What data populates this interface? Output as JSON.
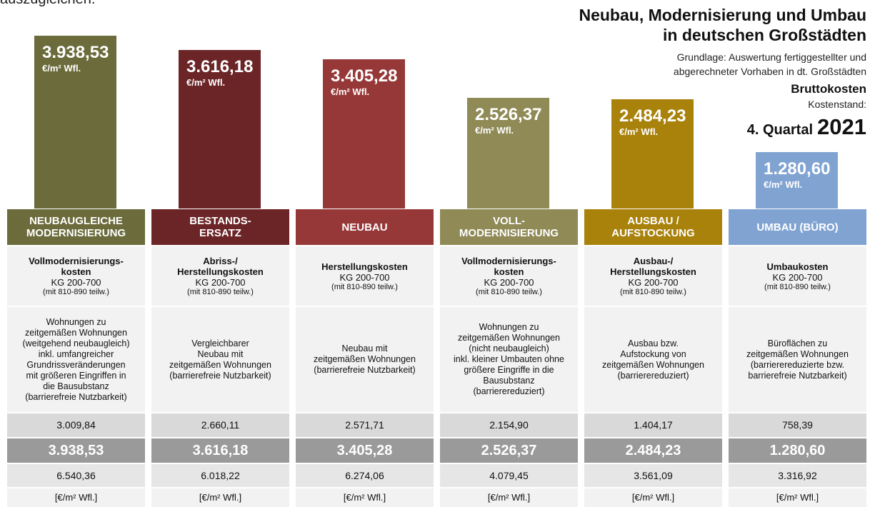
{
  "header_fragment": "auszugleichen.",
  "chart_data": {
    "type": "bar",
    "title": [
      "Neubau, Modernisierung und Umbau",
      "in deutschen Großstädten"
    ],
    "subtitle": [
      "Grundlage: Auswertung fertiggestellter und",
      "abgerechneter Vorhaben in dt. Großstädten"
    ],
    "cost_label": "Bruttokosten",
    "date_label": "Kostenstand:",
    "quarter": "4. Quartal",
    "year": "2021",
    "categories": [
      "NEUBAUGLEICHE MODERNISIERUNG",
      "BESTANDS-ERSATZ",
      "NEUBAU",
      "VOLL-MODERNISIERUNG",
      "AUSBAU / AUFSTOCKUNG",
      "UMBAU (BÜRO)"
    ],
    "category_lines": [
      [
        "NEUBAUGLEICHE",
        "MODERNISIERUNG"
      ],
      [
        "BESTANDS-",
        "ERSATZ"
      ],
      [
        "NEUBAU"
      ],
      [
        "VOLL-",
        "MODERNISIERUNG"
      ],
      [
        "AUSBAU /",
        "AUFSTOCKUNG"
      ],
      [
        "UMBAU (BÜRO)"
      ]
    ],
    "values": [
      3938.53,
      3616.18,
      3405.28,
      2526.37,
      2484.23,
      1280.6
    ],
    "value_labels": [
      "3.938,53",
      "3.616,18",
      "3.405,28",
      "2.526,37",
      "2.484,23",
      "1.280,60"
    ],
    "unit_label": "€/m² Wfl.",
    "colors": [
      "#6b6b3b",
      "#6c2527",
      "#973838",
      "#8f8a56",
      "#a9820c",
      "#80a3d2"
    ]
  },
  "table": {
    "cost_types": [
      {
        "title": [
          "Vollmodernisierungs-",
          "kosten"
        ],
        "kg": "KG 200-700",
        "note": "(mit 810-890 teilw.)"
      },
      {
        "title": [
          "Abriss-/",
          "Herstellungskosten"
        ],
        "kg": "KG 200-700",
        "note": "(mit 810-890 teilw.)"
      },
      {
        "title": [
          "Herstellungskosten"
        ],
        "kg": "KG 200-700",
        "note": "(mit 810-890 teilw.)"
      },
      {
        "title": [
          "Vollmodernisierungs-",
          "kosten"
        ],
        "kg": "KG 200-700",
        "note": "(mit 810-890 teilw.)"
      },
      {
        "title": [
          "Ausbau-/",
          "Herstellungskosten"
        ],
        "kg": "KG 200-700",
        "note": "(mit 810-890 teilw.)"
      },
      {
        "title": [
          "Umbaukosten"
        ],
        "kg": "KG 200-700",
        "note": "(mit 810-890 teilw.)"
      }
    ],
    "descriptions": [
      [
        "Wohnungen zu",
        "zeitgemäßen Wohnungen",
        "(weitgehend neubaugleich)",
        "inkl. umfangreicher",
        "Grundrissveränderungen",
        "mit größeren Eingriffen in",
        "die Bausubstanz",
        "(barrierefreie Nutzbarkeit)"
      ],
      [
        "Vergleichbarer",
        "Neubau mit",
        "zeitgemäßen Wohnungen",
        "(barrierefreie Nutzbarkeit)"
      ],
      [
        "Neubau mit",
        "zeitgemäßen Wohnungen",
        "(barrierefreie Nutzbarkeit)"
      ],
      [
        "Wohnungen zu",
        "zeitgemäßen Wohnungen",
        "(nicht neubaugleich)",
        "inkl. kleiner Umbauten ohne",
        "größere Eingriffe in die",
        "Bausubstanz",
        "(barrierereduziert)"
      ],
      [
        "Ausbau bzw.",
        "Aufstockung von",
        "zeitgemäßen Wohnungen",
        "(barrierereduziert)"
      ],
      [
        "Büroflächen zu",
        "zeitgemäßen Wohnungen",
        "(barrierereduzierte bzw.",
        "barrierefreie Nutzbarkeit)"
      ]
    ],
    "min": [
      "3.009,84",
      "2.660,11",
      "2.571,71",
      "2.154,90",
      "1.404,17",
      "758,39"
    ],
    "max": [
      "6.540,36",
      "6.018,22",
      "6.274,06",
      "4.079,45",
      "3.561,09",
      "3.316,92"
    ],
    "unit": "[€/m² Wfl.]"
  }
}
